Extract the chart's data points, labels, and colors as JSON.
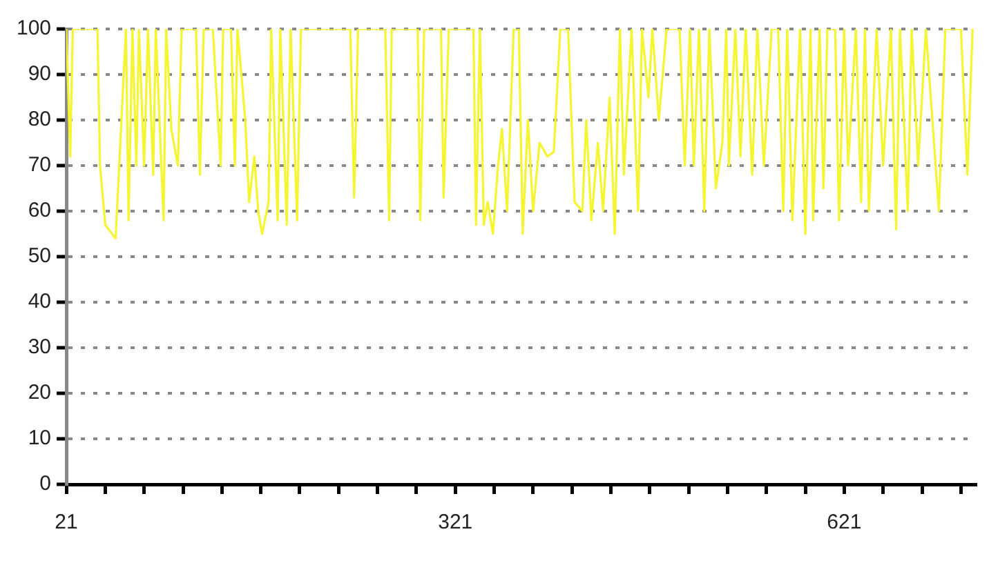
{
  "chart_data": {
    "type": "line",
    "xlim": [
      21,
      722
    ],
    "ylim": [
      0,
      100
    ],
    "yticks": [
      0,
      10,
      20,
      30,
      40,
      50,
      60,
      70,
      80,
      90,
      100
    ],
    "xticks": [
      21,
      {
        "value": 51,
        "label": null
      },
      {
        "value": 81,
        "label": null
      },
      {
        "value": 111,
        "label": null
      },
      {
        "value": 141,
        "label": null
      },
      {
        "value": 171,
        "label": null
      },
      {
        "value": 201,
        "label": null
      },
      {
        "value": 231,
        "label": null
      },
      {
        "value": 261,
        "label": null
      },
      {
        "value": 291,
        "label": null
      },
      321,
      {
        "value": 351,
        "label": null
      },
      {
        "value": 381,
        "label": null
      },
      {
        "value": 411,
        "label": null
      },
      {
        "value": 441,
        "label": null
      },
      {
        "value": 471,
        "label": null
      },
      {
        "value": 501,
        "label": null
      },
      {
        "value": 531,
        "label": null
      },
      {
        "value": 561,
        "label": null
      },
      {
        "value": 591,
        "label": null
      },
      621,
      {
        "value": 651,
        "label": null
      },
      {
        "value": 681,
        "label": null
      },
      {
        "value": 711,
        "label": null
      }
    ],
    "grid": "y",
    "legend": false,
    "marker": "none",
    "line_style": "solid",
    "series": [
      {
        "color": "#f5f532",
        "x": [
          21,
          24,
          26,
          45,
          47,
          51,
          59,
          67,
          69,
          72,
          75,
          77,
          81,
          84,
          88,
          90,
          96,
          98,
          102,
          107,
          110,
          121,
          124,
          127,
          134,
          138,
          140,
          142,
          148,
          151,
          153,
          159,
          162,
          166,
          169,
          172,
          177,
          179,
          184,
          186,
          191,
          194,
          199,
          202,
          240,
          243,
          246,
          267,
          270,
          272,
          292,
          294,
          297,
          310,
          312,
          316,
          335,
          337,
          340,
          343,
          346,
          350,
          354,
          357,
          361,
          366,
          370,
          373,
          377,
          381,
          386,
          392,
          397,
          402,
          408,
          413,
          419,
          422,
          426,
          431,
          435,
          440,
          444,
          448,
          451,
          457,
          462,
          465,
          470,
          473,
          478,
          484,
          494,
          498,
          502,
          505,
          509,
          513,
          517,
          522,
          527,
          530,
          532,
          537,
          541,
          545,
          550,
          554,
          559,
          565,
          570,
          574,
          577,
          581,
          587,
          591,
          595,
          597,
          602,
          605,
          608,
          614,
          617,
          621,
          624,
          630,
          634,
          637,
          640,
          646,
          651,
          657,
          661,
          664,
          670,
          673,
          678,
          684,
          694,
          699,
          711,
          716,
          720
        ],
        "values": [
          100,
          72,
          100,
          100,
          70,
          57,
          54,
          100,
          58,
          100,
          70,
          100,
          70,
          100,
          68,
          100,
          58,
          100,
          78,
          70,
          100,
          100,
          68,
          100,
          100,
          80,
          70,
          100,
          100,
          70,
          100,
          80,
          62,
          72,
          60,
          55,
          62,
          100,
          58,
          100,
          57,
          100,
          58,
          100,
          100,
          63,
          100,
          100,
          58,
          100,
          100,
          58,
          100,
          100,
          63,
          100,
          100,
          57,
          100,
          57,
          62,
          55,
          70,
          78,
          60,
          100,
          100,
          55,
          80,
          60,
          75,
          72,
          73,
          100,
          100,
          62,
          60,
          80,
          58,
          75,
          60,
          85,
          55,
          100,
          68,
          100,
          60,
          100,
          85,
          100,
          80,
          100,
          100,
          70,
          100,
          70,
          100,
          60,
          100,
          65,
          75,
          100,
          70,
          100,
          72,
          100,
          68,
          100,
          70,
          100,
          100,
          60,
          100,
          58,
          100,
          55,
          100,
          58,
          100,
          65,
          100,
          100,
          58,
          100,
          70,
          100,
          62,
          100,
          60,
          100,
          70,
          100,
          56,
          100,
          60,
          100,
          70,
          100,
          60,
          100,
          100,
          68,
          100
        ]
      }
    ]
  }
}
